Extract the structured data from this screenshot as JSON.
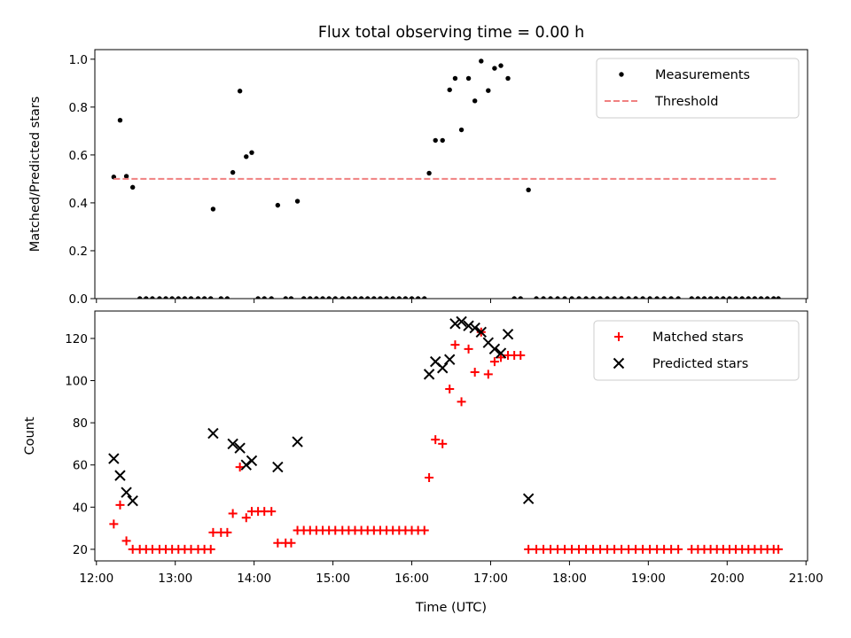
{
  "chart_data": {
    "title": "Flux total observing time = 0.00 h",
    "xlabel": "Time (UTC)",
    "x_units": "decimal hours UTC",
    "xlim": [
      11.98,
      21.02
    ],
    "x_ticks": [
      12,
      13,
      14,
      15,
      16,
      17,
      18,
      19,
      20,
      21
    ],
    "x_tick_labels": [
      "12:00",
      "13:00",
      "14:00",
      "15:00",
      "16:00",
      "17:00",
      "18:00",
      "19:00",
      "20:00",
      "21:00"
    ],
    "top": {
      "type": "scatter",
      "ylabel": "Matched/Predicted stars",
      "ylim": [
        0,
        1.04
      ],
      "y_ticks": [
        0,
        0.2,
        0.4,
        0.6,
        0.8,
        1.0
      ],
      "y_tick_labels": [
        "0.0",
        "0.2",
        "0.4",
        "0.6",
        "0.8",
        "1.0"
      ],
      "legend_position": "top-right",
      "series": [
        {
          "name": "Measurements",
          "marker": "dot",
          "color": "#000000",
          "points": [
            [
              12.22,
              0.508
            ],
            [
              12.3,
              0.745
            ],
            [
              12.38,
              0.511
            ],
            [
              12.46,
              0.465
            ],
            [
              12.55,
              0
            ],
            [
              12.63,
              0
            ],
            [
              12.71,
              0
            ],
            [
              12.8,
              0
            ],
            [
              12.88,
              0
            ],
            [
              12.96,
              0
            ],
            [
              13.04,
              0
            ],
            [
              13.12,
              0
            ],
            [
              13.2,
              0
            ],
            [
              13.29,
              0
            ],
            [
              13.37,
              0
            ],
            [
              13.45,
              0
            ],
            [
              13.48,
              0.374
            ],
            [
              13.58,
              0
            ],
            [
              13.66,
              0
            ],
            [
              13.73,
              0.527
            ],
            [
              13.82,
              0.867
            ],
            [
              13.9,
              0.593
            ],
            [
              13.97,
              0.61
            ],
            [
              14.05,
              0
            ],
            [
              14.13,
              0
            ],
            [
              14.22,
              0
            ],
            [
              14.3,
              0.39
            ],
            [
              14.4,
              0
            ],
            [
              14.47,
              0
            ],
            [
              14.55,
              0.407
            ],
            [
              14.63,
              0
            ],
            [
              14.71,
              0
            ],
            [
              14.79,
              0
            ],
            [
              14.87,
              0
            ],
            [
              14.95,
              0
            ],
            [
              15.03,
              0
            ],
            [
              15.12,
              0
            ],
            [
              15.2,
              0
            ],
            [
              15.28,
              0
            ],
            [
              15.36,
              0
            ],
            [
              15.44,
              0
            ],
            [
              15.52,
              0
            ],
            [
              15.6,
              0
            ],
            [
              15.68,
              0
            ],
            [
              15.76,
              0
            ],
            [
              15.84,
              0
            ],
            [
              15.92,
              0
            ],
            [
              16.0,
              0
            ],
            [
              16.08,
              0
            ],
            [
              16.16,
              0
            ],
            [
              16.22,
              0.524
            ],
            [
              16.3,
              0.661
            ],
            [
              16.39,
              0.661
            ],
            [
              16.48,
              0.872
            ],
            [
              16.55,
              0.92
            ],
            [
              16.63,
              0.705
            ],
            [
              16.72,
              0.92
            ],
            [
              16.8,
              0.826
            ],
            [
              16.88,
              0.992
            ],
            [
              16.97,
              0.869
            ],
            [
              17.05,
              0.962
            ],
            [
              17.13,
              0.973
            ],
            [
              17.22,
              0.92
            ],
            [
              17.3,
              0
            ],
            [
              17.38,
              0
            ],
            [
              17.48,
              0.454
            ],
            [
              17.58,
              0
            ],
            [
              17.67,
              0
            ],
            [
              17.76,
              0
            ],
            [
              17.85,
              0
            ],
            [
              17.94,
              0
            ],
            [
              18.03,
              0
            ],
            [
              18.12,
              0
            ],
            [
              18.21,
              0
            ],
            [
              18.3,
              0
            ],
            [
              18.39,
              0
            ],
            [
              18.48,
              0
            ],
            [
              18.57,
              0
            ],
            [
              18.66,
              0
            ],
            [
              18.75,
              0
            ],
            [
              18.84,
              0
            ],
            [
              18.93,
              0
            ],
            [
              19.02,
              0
            ],
            [
              19.11,
              0
            ],
            [
              19.2,
              0
            ],
            [
              19.29,
              0
            ],
            [
              19.38,
              0
            ],
            [
              19.55,
              0
            ],
            [
              19.63,
              0
            ],
            [
              19.71,
              0
            ],
            [
              19.79,
              0
            ],
            [
              19.87,
              0
            ],
            [
              19.95,
              0
            ],
            [
              20.03,
              0
            ],
            [
              20.11,
              0
            ],
            [
              20.19,
              0
            ],
            [
              20.27,
              0
            ],
            [
              20.35,
              0
            ],
            [
              20.43,
              0
            ],
            [
              20.51,
              0
            ],
            [
              20.59,
              0
            ],
            [
              20.65,
              0
            ]
          ]
        },
        {
          "name": "Threshold",
          "style": "dashed",
          "color": "#f08080",
          "x": [
            12.22,
            20.65
          ],
          "y": [
            0.5,
            0.5
          ]
        }
      ]
    },
    "bottom": {
      "type": "scatter",
      "ylabel": "Count",
      "ylim": [
        14.5,
        133
      ],
      "y_ticks": [
        20,
        40,
        60,
        80,
        100,
        120
      ],
      "y_tick_labels": [
        "20",
        "40",
        "60",
        "80",
        "100",
        "120"
      ],
      "legend_position": "top-right",
      "series": [
        {
          "name": "Matched stars",
          "marker": "plus",
          "color": "#ff0000",
          "points": [
            [
              12.22,
              32
            ],
            [
              12.3,
              41
            ],
            [
              12.38,
              24
            ],
            [
              12.46,
              20
            ],
            [
              12.55,
              20
            ],
            [
              12.63,
              20
            ],
            [
              12.71,
              20
            ],
            [
              12.8,
              20
            ],
            [
              12.88,
              20
            ],
            [
              12.96,
              20
            ],
            [
              13.04,
              20
            ],
            [
              13.12,
              20
            ],
            [
              13.2,
              20
            ],
            [
              13.29,
              20
            ],
            [
              13.37,
              20
            ],
            [
              13.45,
              20
            ],
            [
              13.48,
              28
            ],
            [
              13.58,
              28
            ],
            [
              13.66,
              28
            ],
            [
              13.73,
              37
            ],
            [
              13.82,
              59
            ],
            [
              13.9,
              35
            ],
            [
              13.97,
              38
            ],
            [
              14.05,
              38
            ],
            [
              14.13,
              38
            ],
            [
              14.22,
              38
            ],
            [
              14.3,
              23
            ],
            [
              14.4,
              23
            ],
            [
              14.47,
              23
            ],
            [
              14.55,
              29
            ],
            [
              14.63,
              29
            ],
            [
              14.71,
              29
            ],
            [
              14.79,
              29
            ],
            [
              14.87,
              29
            ],
            [
              14.95,
              29
            ],
            [
              15.03,
              29
            ],
            [
              15.12,
              29
            ],
            [
              15.2,
              29
            ],
            [
              15.28,
              29
            ],
            [
              15.36,
              29
            ],
            [
              15.44,
              29
            ],
            [
              15.52,
              29
            ],
            [
              15.6,
              29
            ],
            [
              15.68,
              29
            ],
            [
              15.76,
              29
            ],
            [
              15.84,
              29
            ],
            [
              15.92,
              29
            ],
            [
              16.0,
              29
            ],
            [
              16.08,
              29
            ],
            [
              16.16,
              29
            ],
            [
              16.22,
              54
            ],
            [
              16.3,
              72
            ],
            [
              16.39,
              70
            ],
            [
              16.48,
              96
            ],
            [
              16.55,
              117
            ],
            [
              16.63,
              90
            ],
            [
              16.72,
              115
            ],
            [
              16.8,
              104
            ],
            [
              16.88,
              123
            ],
            [
              16.97,
              103
            ],
            [
              17.05,
              109
            ],
            [
              17.13,
              111
            ],
            [
              17.22,
              112
            ],
            [
              17.3,
              112
            ],
            [
              17.38,
              112
            ],
            [
              17.48,
              20
            ],
            [
              17.58,
              20
            ],
            [
              17.67,
              20
            ],
            [
              17.76,
              20
            ],
            [
              17.85,
              20
            ],
            [
              17.94,
              20
            ],
            [
              18.03,
              20
            ],
            [
              18.12,
              20
            ],
            [
              18.21,
              20
            ],
            [
              18.3,
              20
            ],
            [
              18.39,
              20
            ],
            [
              18.48,
              20
            ],
            [
              18.57,
              20
            ],
            [
              18.66,
              20
            ],
            [
              18.75,
              20
            ],
            [
              18.84,
              20
            ],
            [
              18.93,
              20
            ],
            [
              19.02,
              20
            ],
            [
              19.11,
              20
            ],
            [
              19.2,
              20
            ],
            [
              19.29,
              20
            ],
            [
              19.38,
              20
            ],
            [
              19.55,
              20
            ],
            [
              19.63,
              20
            ],
            [
              19.71,
              20
            ],
            [
              19.79,
              20
            ],
            [
              19.87,
              20
            ],
            [
              19.95,
              20
            ],
            [
              20.03,
              20
            ],
            [
              20.11,
              20
            ],
            [
              20.19,
              20
            ],
            [
              20.27,
              20
            ],
            [
              20.35,
              20
            ],
            [
              20.43,
              20
            ],
            [
              20.51,
              20
            ],
            [
              20.59,
              20
            ],
            [
              20.65,
              20
            ]
          ]
        },
        {
          "name": "Predicted stars",
          "marker": "x",
          "color": "#000000",
          "points": [
            [
              12.22,
              63
            ],
            [
              12.3,
              55
            ],
            [
              12.38,
              47
            ],
            [
              12.46,
              43
            ],
            [
              13.48,
              75
            ],
            [
              13.73,
              70
            ],
            [
              13.82,
              68
            ],
            [
              13.9,
              60
            ],
            [
              13.97,
              62
            ],
            [
              14.3,
              59
            ],
            [
              14.55,
              71
            ],
            [
              16.22,
              103
            ],
            [
              16.3,
              109
            ],
            [
              16.39,
              106
            ],
            [
              16.48,
              110
            ],
            [
              16.55,
              127
            ],
            [
              16.63,
              128
            ],
            [
              16.72,
              126
            ],
            [
              16.8,
              125
            ],
            [
              16.88,
              123
            ],
            [
              16.97,
              118
            ],
            [
              17.05,
              115
            ],
            [
              17.13,
              113
            ],
            [
              17.22,
              122
            ],
            [
              17.48,
              44
            ]
          ]
        }
      ]
    }
  }
}
